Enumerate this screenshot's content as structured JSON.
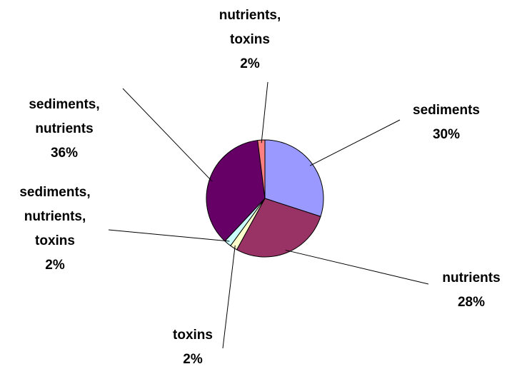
{
  "chart_data": {
    "type": "pie",
    "categories": [
      "sediments",
      "nutrients",
      "toxins",
      "sediments, nutrients, toxins",
      "sediments, nutrients",
      "nutrients, toxins"
    ],
    "values": [
      30,
      28,
      2,
      2,
      36,
      2
    ],
    "value_labels": [
      "30%",
      "28%",
      "2%",
      "2%",
      "36%",
      "2%"
    ],
    "colors": [
      "#9999FF",
      "#993366",
      "#FFFFCC",
      "#CCFFFF",
      "#660066",
      "#FF8080"
    ]
  }
}
